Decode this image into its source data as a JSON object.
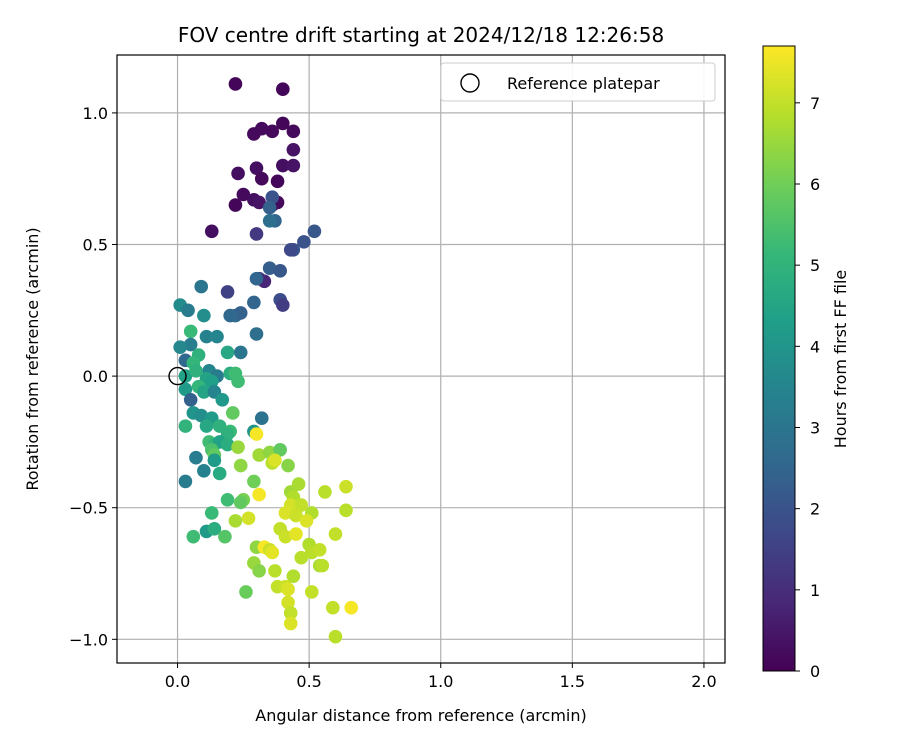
{
  "chart_data": {
    "type": "scatter",
    "title": "FOV centre drift starting at 2024/12/18 12:26:58",
    "xlabel": "Angular distance from reference (arcmin)",
    "ylabel": "Rotation from reference (arcmin)",
    "xlim": [
      -0.23,
      2.08
    ],
    "ylim": [
      -1.09,
      1.22
    ],
    "xticks": [
      0.0,
      0.5,
      1.0,
      1.5,
      2.0
    ],
    "xtick_labels": [
      "0.0",
      "0.5",
      "1.0",
      "1.5",
      "2.0"
    ],
    "yticks": [
      -1.0,
      -0.5,
      0.0,
      0.5,
      1.0
    ],
    "ytick_labels": [
      "−1.0",
      "−0.5",
      "0.0",
      "0.5",
      "1.0"
    ],
    "grid": true,
    "legend": {
      "position": "top-right",
      "label": "Reference platepar"
    },
    "reference_point": {
      "x": 0.0,
      "y": 0.0
    },
    "colorbar": {
      "label": "Hours from first FF file",
      "range": [
        0,
        7.7
      ],
      "ticks": [
        0,
        1,
        2,
        3,
        4,
        5,
        6,
        7
      ],
      "tick_labels": [
        "0",
        "1",
        "2",
        "3",
        "4",
        "5",
        "6",
        "7"
      ],
      "colormap": "viridis",
      "colors": [
        "#440154",
        "#482878",
        "#3e4989",
        "#31688e",
        "#26828e",
        "#1f9e89",
        "#35b779",
        "#6ece58",
        "#b5de2b",
        "#fde725"
      ]
    },
    "points": [
      {
        "x": 0.22,
        "y": 1.11,
        "t": 0.1
      },
      {
        "x": 0.4,
        "y": 1.09,
        "t": 0.1
      },
      {
        "x": 0.29,
        "y": 0.92,
        "t": 0.2
      },
      {
        "x": 0.32,
        "y": 0.94,
        "t": 0.2
      },
      {
        "x": 0.36,
        "y": 0.93,
        "t": 0.2
      },
      {
        "x": 0.4,
        "y": 0.96,
        "t": 0.1
      },
      {
        "x": 0.44,
        "y": 0.93,
        "t": 0.2
      },
      {
        "x": 0.44,
        "y": 0.86,
        "t": 0.4
      },
      {
        "x": 0.4,
        "y": 0.8,
        "t": 0.3
      },
      {
        "x": 0.44,
        "y": 0.8,
        "t": 0.4
      },
      {
        "x": 0.23,
        "y": 0.77,
        "t": 0.3
      },
      {
        "x": 0.3,
        "y": 0.79,
        "t": 0.3
      },
      {
        "x": 0.32,
        "y": 0.75,
        "t": 0.2
      },
      {
        "x": 0.38,
        "y": 0.74,
        "t": 0.1
      },
      {
        "x": 0.25,
        "y": 0.69,
        "t": 0.2
      },
      {
        "x": 0.29,
        "y": 0.67,
        "t": 0.3
      },
      {
        "x": 0.31,
        "y": 0.66,
        "t": 0.4
      },
      {
        "x": 0.22,
        "y": 0.65,
        "t": 0.1
      },
      {
        "x": 0.36,
        "y": 0.65,
        "t": 0.4
      },
      {
        "x": 0.38,
        "y": 0.66,
        "t": 0.2
      },
      {
        "x": 0.13,
        "y": 0.55,
        "t": 0.3
      },
      {
        "x": 0.3,
        "y": 0.54,
        "t": 1.3
      },
      {
        "x": 0.36,
        "y": 0.68,
        "t": 2.0
      },
      {
        "x": 0.35,
        "y": 0.64,
        "t": 2.4
      },
      {
        "x": 0.37,
        "y": 0.59,
        "t": 2.5
      },
      {
        "x": 0.35,
        "y": 0.59,
        "t": 2.8
      },
      {
        "x": 0.52,
        "y": 0.55,
        "t": 2.1
      },
      {
        "x": 0.48,
        "y": 0.51,
        "t": 2.0
      },
      {
        "x": 0.44,
        "y": 0.48,
        "t": 2.0
      },
      {
        "x": 0.43,
        "y": 0.48,
        "t": 1.7
      },
      {
        "x": 0.35,
        "y": 0.41,
        "t": 2.3
      },
      {
        "x": 0.39,
        "y": 0.4,
        "t": 2.1
      },
      {
        "x": 0.31,
        "y": 0.37,
        "t": 1.4
      },
      {
        "x": 0.33,
        "y": 0.36,
        "t": 0.8
      },
      {
        "x": 0.3,
        "y": 0.37,
        "t": 2.5
      },
      {
        "x": 0.19,
        "y": 0.32,
        "t": 1.5
      },
      {
        "x": 0.29,
        "y": 0.28,
        "t": 2.5
      },
      {
        "x": 0.39,
        "y": 0.29,
        "t": 1.8
      },
      {
        "x": 0.4,
        "y": 0.27,
        "t": 1.4
      },
      {
        "x": 0.22,
        "y": 0.23,
        "t": 2.7
      },
      {
        "x": 0.24,
        "y": 0.24,
        "t": 2.4
      },
      {
        "x": 0.2,
        "y": 0.23,
        "t": 2.6
      },
      {
        "x": 0.09,
        "y": 0.34,
        "t": 3.0
      },
      {
        "x": 0.01,
        "y": 0.27,
        "t": 3.7
      },
      {
        "x": 0.04,
        "y": 0.25,
        "t": 3.2
      },
      {
        "x": 0.1,
        "y": 0.23,
        "t": 3.8
      },
      {
        "x": 0.05,
        "y": 0.17,
        "t": 5.2
      },
      {
        "x": 0.11,
        "y": 0.15,
        "t": 3.4
      },
      {
        "x": 0.15,
        "y": 0.15,
        "t": 3.5
      },
      {
        "x": 0.3,
        "y": 0.16,
        "t": 2.8
      },
      {
        "x": 0.05,
        "y": 0.12,
        "t": 3.3
      },
      {
        "x": 0.01,
        "y": 0.11,
        "t": 3.6
      },
      {
        "x": 0.03,
        "y": 0.06,
        "t": 2.6
      },
      {
        "x": 0.08,
        "y": 0.08,
        "t": 4.9
      },
      {
        "x": 0.19,
        "y": 0.09,
        "t": 4.6
      },
      {
        "x": 0.24,
        "y": 0.09,
        "t": 3.0
      },
      {
        "x": 0.06,
        "y": 0.05,
        "t": 5.1
      },
      {
        "x": 0.12,
        "y": 0.02,
        "t": 3.5
      },
      {
        "x": 0.15,
        "y": 0.0,
        "t": 3.2
      },
      {
        "x": 0.2,
        "y": 0.01,
        "t": 4.8
      },
      {
        "x": 0.22,
        "y": 0.01,
        "t": 5.3
      },
      {
        "x": 0.23,
        "y": -0.02,
        "t": 5.3
      },
      {
        "x": 0.11,
        "y": -0.01,
        "t": 4.5
      },
      {
        "x": 0.13,
        "y": -0.02,
        "t": 4.3
      },
      {
        "x": 0.03,
        "y": 0.0,
        "t": 4.4
      },
      {
        "x": 0.07,
        "y": 0.02,
        "t": 4.9
      },
      {
        "x": 0.03,
        "y": -0.05,
        "t": 4.2
      },
      {
        "x": 0.08,
        "y": -0.04,
        "t": 5.1
      },
      {
        "x": 0.05,
        "y": -0.09,
        "t": 2.4
      },
      {
        "x": 0.1,
        "y": -0.06,
        "t": 4.5
      },
      {
        "x": 0.14,
        "y": -0.06,
        "t": 3.5
      },
      {
        "x": 0.17,
        "y": -0.09,
        "t": 4.1
      },
      {
        "x": 0.06,
        "y": -0.14,
        "t": 4.0
      },
      {
        "x": 0.09,
        "y": -0.15,
        "t": 3.8
      },
      {
        "x": 0.21,
        "y": -0.14,
        "t": 5.8
      },
      {
        "x": 0.32,
        "y": -0.16,
        "t": 2.9
      },
      {
        "x": 0.13,
        "y": -0.16,
        "t": 4.2
      },
      {
        "x": 0.03,
        "y": -0.19,
        "t": 5.0
      },
      {
        "x": 0.11,
        "y": -0.19,
        "t": 4.6
      },
      {
        "x": 0.16,
        "y": -0.19,
        "t": 4.9
      },
      {
        "x": 0.2,
        "y": -0.21,
        "t": 5.2
      },
      {
        "x": 0.19,
        "y": -0.22,
        "t": 4.9
      },
      {
        "x": 0.29,
        "y": -0.21,
        "t": 4.0
      },
      {
        "x": 0.3,
        "y": -0.22,
        "t": 7.6
      },
      {
        "x": 0.12,
        "y": -0.25,
        "t": 5.3
      },
      {
        "x": 0.14,
        "y": -0.26,
        "t": 5.0
      },
      {
        "x": 0.16,
        "y": -0.25,
        "t": 4.4
      },
      {
        "x": 0.19,
        "y": -0.26,
        "t": 4.8
      },
      {
        "x": 0.13,
        "y": -0.28,
        "t": 5.5
      },
      {
        "x": 0.23,
        "y": -0.27,
        "t": 6.5
      },
      {
        "x": 0.07,
        "y": -0.31,
        "t": 3.3
      },
      {
        "x": 0.14,
        "y": -0.3,
        "t": 5.8
      },
      {
        "x": 0.14,
        "y": -0.32,
        "t": 4.2
      },
      {
        "x": 0.31,
        "y": -0.3,
        "t": 6.6
      },
      {
        "x": 0.35,
        "y": -0.29,
        "t": 6.4
      },
      {
        "x": 0.39,
        "y": -0.28,
        "t": 5.8
      },
      {
        "x": 0.36,
        "y": -0.33,
        "t": 6.9
      },
      {
        "x": 0.37,
        "y": -0.32,
        "t": 7.3
      },
      {
        "x": 0.42,
        "y": -0.34,
        "t": 6.3
      },
      {
        "x": 0.1,
        "y": -0.36,
        "t": 3.4
      },
      {
        "x": 0.24,
        "y": -0.34,
        "t": 6.4
      },
      {
        "x": 0.16,
        "y": -0.37,
        "t": 4.7
      },
      {
        "x": 0.29,
        "y": -0.4,
        "t": 6.0
      },
      {
        "x": 0.03,
        "y": -0.4,
        "t": 3.2
      },
      {
        "x": 0.43,
        "y": -0.44,
        "t": 6.6
      },
      {
        "x": 0.46,
        "y": -0.41,
        "t": 6.7
      },
      {
        "x": 0.44,
        "y": -0.46,
        "t": 6.8
      },
      {
        "x": 0.56,
        "y": -0.44,
        "t": 6.9
      },
      {
        "x": 0.64,
        "y": -0.42,
        "t": 7.1
      },
      {
        "x": 0.31,
        "y": -0.45,
        "t": 7.6
      },
      {
        "x": 0.19,
        "y": -0.47,
        "t": 5.3
      },
      {
        "x": 0.25,
        "y": -0.47,
        "t": 6.1
      },
      {
        "x": 0.24,
        "y": -0.48,
        "t": 5.8
      },
      {
        "x": 0.43,
        "y": -0.49,
        "t": 7.2
      },
      {
        "x": 0.41,
        "y": -0.52,
        "t": 7.3
      },
      {
        "x": 0.47,
        "y": -0.49,
        "t": 7.0
      },
      {
        "x": 0.45,
        "y": -0.53,
        "t": 7.1
      },
      {
        "x": 0.51,
        "y": -0.52,
        "t": 6.8
      },
      {
        "x": 0.49,
        "y": -0.55,
        "t": 7.3
      },
      {
        "x": 0.64,
        "y": -0.51,
        "t": 6.9
      },
      {
        "x": 0.13,
        "y": -0.52,
        "t": 5.2
      },
      {
        "x": 0.27,
        "y": -0.54,
        "t": 7.2
      },
      {
        "x": 0.22,
        "y": -0.55,
        "t": 6.7
      },
      {
        "x": 0.11,
        "y": -0.59,
        "t": 4.2
      },
      {
        "x": 0.14,
        "y": -0.58,
        "t": 4.8
      },
      {
        "x": 0.18,
        "y": -0.61,
        "t": 5.6
      },
      {
        "x": 0.06,
        "y": -0.61,
        "t": 5.3
      },
      {
        "x": 0.39,
        "y": -0.58,
        "t": 7.0
      },
      {
        "x": 0.41,
        "y": -0.61,
        "t": 7.1
      },
      {
        "x": 0.45,
        "y": -0.6,
        "t": 7.4
      },
      {
        "x": 0.6,
        "y": -0.6,
        "t": 7.0
      },
      {
        "x": 0.5,
        "y": -0.64,
        "t": 6.8
      },
      {
        "x": 0.51,
        "y": -0.67,
        "t": 6.9
      },
      {
        "x": 0.54,
        "y": -0.66,
        "t": 7.0
      },
      {
        "x": 0.3,
        "y": -0.65,
        "t": 6.4
      },
      {
        "x": 0.33,
        "y": -0.65,
        "t": 7.6
      },
      {
        "x": 0.35,
        "y": -0.66,
        "t": 7.1
      },
      {
        "x": 0.36,
        "y": -0.67,
        "t": 7.4
      },
      {
        "x": 0.47,
        "y": -0.69,
        "t": 6.9
      },
      {
        "x": 0.29,
        "y": -0.71,
        "t": 6.5
      },
      {
        "x": 0.31,
        "y": -0.74,
        "t": 6.3
      },
      {
        "x": 0.37,
        "y": -0.74,
        "t": 6.9
      },
      {
        "x": 0.54,
        "y": -0.72,
        "t": 6.7
      },
      {
        "x": 0.55,
        "y": -0.72,
        "t": 6.9
      },
      {
        "x": 0.44,
        "y": -0.76,
        "t": 6.8
      },
      {
        "x": 0.38,
        "y": -0.8,
        "t": 7.0
      },
      {
        "x": 0.41,
        "y": -0.8,
        "t": 7.1
      },
      {
        "x": 0.42,
        "y": -0.81,
        "t": 7.3
      },
      {
        "x": 0.26,
        "y": -0.82,
        "t": 5.9
      },
      {
        "x": 0.51,
        "y": -0.82,
        "t": 7.0
      },
      {
        "x": 0.42,
        "y": -0.86,
        "t": 7.2
      },
      {
        "x": 0.59,
        "y": -0.88,
        "t": 7.0
      },
      {
        "x": 0.66,
        "y": -0.88,
        "t": 7.6
      },
      {
        "x": 0.43,
        "y": -0.9,
        "t": 7.0
      },
      {
        "x": 0.43,
        "y": -0.94,
        "t": 7.3
      },
      {
        "x": 0.6,
        "y": -0.99,
        "t": 6.9
      }
    ]
  }
}
